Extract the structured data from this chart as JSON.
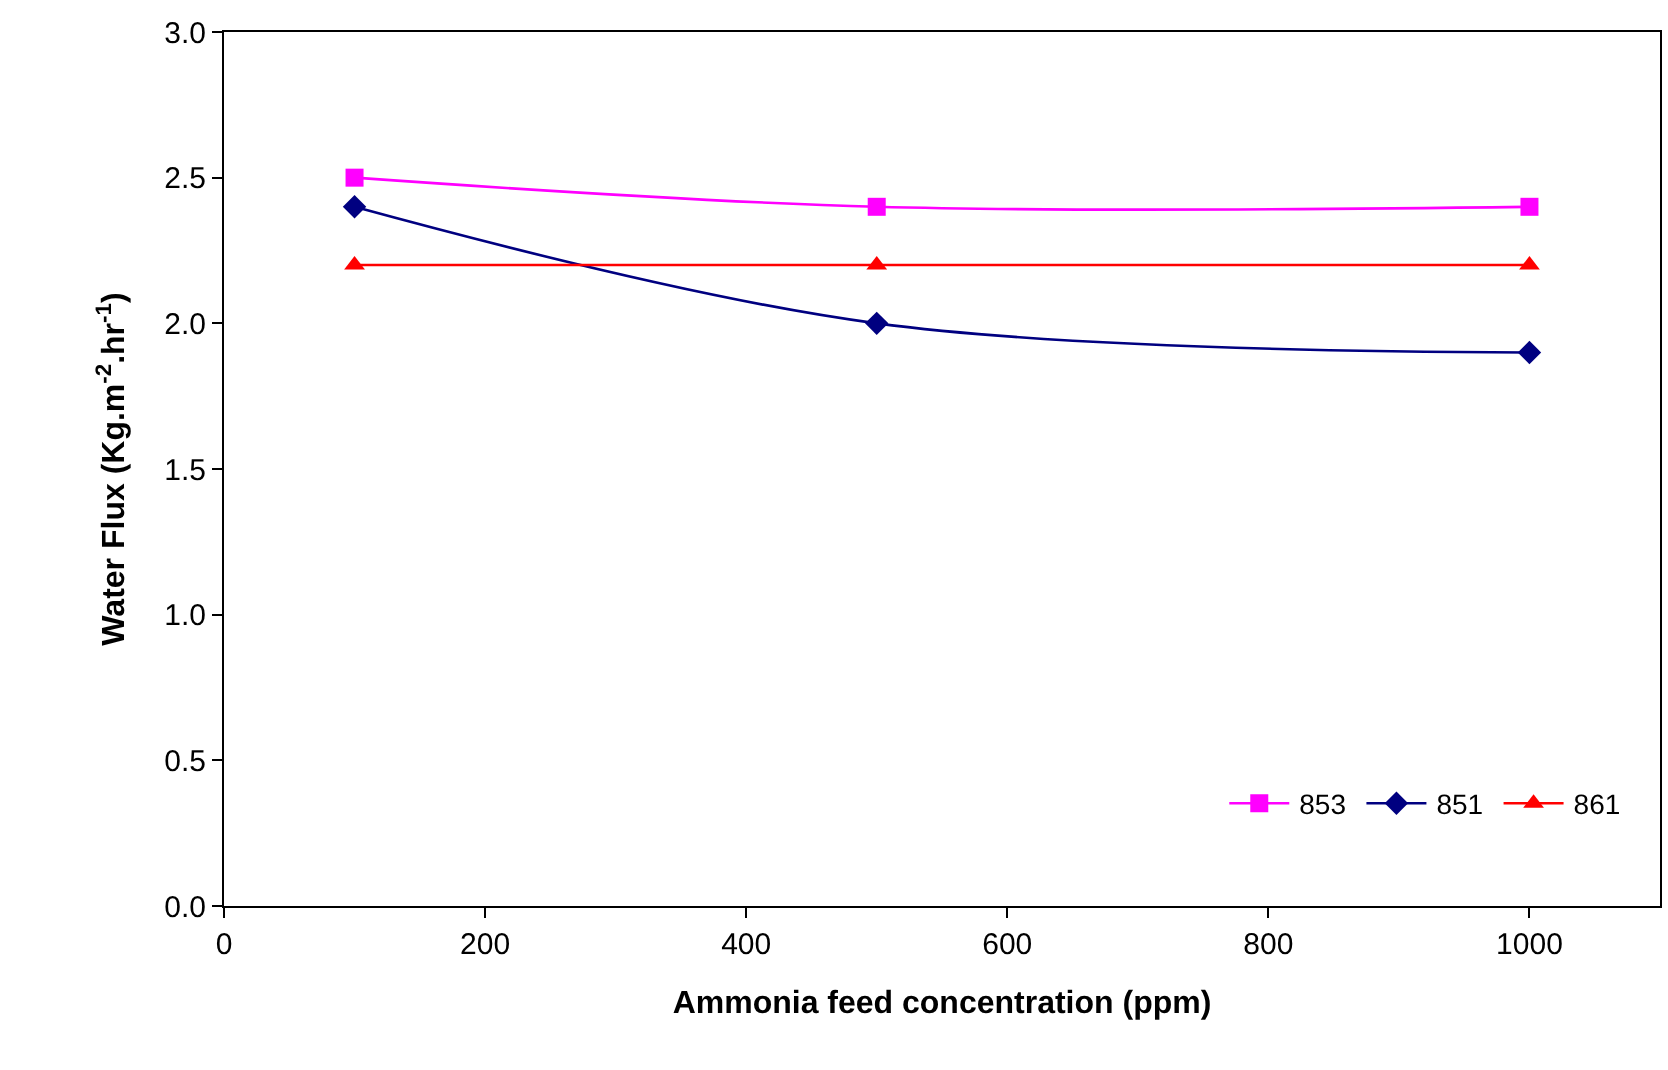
{
  "chart_data": {
    "type": "line",
    "xlabel": "Ammonia feed concentration (ppm)",
    "ylabel": "Water Flux (Kg.m$^{-2}$.hr$^{-1}$)",
    "x": [
      100,
      500,
      1000
    ],
    "series": [
      {
        "name": "853",
        "color": "#ff00ff",
        "marker": "square",
        "values": [
          2.5,
          2.4,
          2.4
        ]
      },
      {
        "name": "851",
        "color": "#000080",
        "marker": "diamond",
        "values": [
          2.4,
          2.0,
          1.9
        ]
      },
      {
        "name": "861",
        "color": "#ff0000",
        "marker": "triangle",
        "values": [
          2.2,
          2.2,
          2.2
        ]
      }
    ],
    "xlim": [
      0,
      1100
    ],
    "xticks": [
      0,
      200,
      400,
      600,
      800,
      1000
    ],
    "ylim": [
      0,
      3.0
    ],
    "yticks": [
      {
        "value": 0,
        "label": "0.0"
      },
      {
        "value": 0.5,
        "label": "0.5"
      },
      {
        "value": 1.0,
        "label": "1.0"
      },
      {
        "value": 1.5,
        "label": "1.5"
      },
      {
        "value": 2.0,
        "label": "2.0"
      },
      {
        "value": 2.5,
        "label": "2.5"
      },
      {
        "value": 3.0,
        "label": "3.0"
      }
    ],
    "legend": "bottom right",
    "line_style": "solid"
  }
}
